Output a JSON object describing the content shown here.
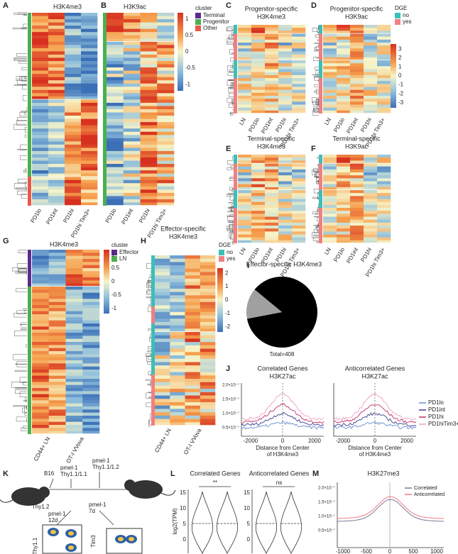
{
  "A": {
    "letter": "A",
    "title": "H3K4me3",
    "columns": [
      "PD1lo",
      "PD1int",
      "PD1hi",
      "PD1hi Tim3+"
    ]
  },
  "B": {
    "letter": "B",
    "title": "H3K9ac",
    "columns": [
      "PD1lo",
      "PD1int",
      "PD1hi",
      "PD1hi Tim3+"
    ]
  },
  "cluster_legend": {
    "title": "cluster",
    "items": [
      "Terminal",
      "Progenitor",
      "Other"
    ],
    "colors": [
      "#5b2c8f",
      "#4caf50",
      "#e8584a"
    ],
    "ticks": [
      1,
      0.5,
      0,
      -0.5,
      -1
    ]
  },
  "C": {
    "letter": "C",
    "title": [
      "Progenitor-specific",
      "H3K4me3"
    ],
    "columns": [
      "LN",
      "PD1lo",
      "PD1int",
      "PD1hi",
      "PD1hi Tim3+"
    ]
  },
  "D": {
    "letter": "D",
    "title": [
      "Progenitor-specific",
      "H3K9ac"
    ],
    "columns": [
      "LN",
      "PD1lo",
      "PD1int",
      "PD1hi",
      "PD1hi Tim3+"
    ]
  },
  "E": {
    "letter": "E",
    "title": [
      "Terminal-specific",
      "H3K4me3"
    ],
    "columns": [
      "LN",
      "PD1lo",
      "PD1int",
      "PD1hi",
      "PD1hi Tim3+"
    ]
  },
  "F": {
    "letter": "F",
    "title": [
      "Terminal-specific",
      "H3K9ac"
    ],
    "columns": [
      "LN",
      "PD1lo",
      "PD1int",
      "PD1hi",
      "PD1hi Tim3+"
    ]
  },
  "dge_legend": {
    "title": "DGE",
    "items": [
      "no",
      "yes"
    ],
    "colors": [
      "#3dbfb8",
      "#f08080"
    ],
    "ticks": [
      3,
      2,
      1,
      0,
      -1,
      -2,
      -3
    ]
  },
  "G": {
    "letter": "G",
    "title": "H3K4me3",
    "columns": [
      "CD44+ LN",
      "OT-I VVova"
    ],
    "legend_title": "cluster",
    "legend_items": [
      "Effector",
      "LN"
    ],
    "legend_colors": [
      "#5b2c8f",
      "#4caf50"
    ],
    "ticks": [
      1,
      0.5,
      0,
      -0.5,
      -1
    ]
  },
  "H": {
    "letter": "H",
    "title": [
      "Effector-specific",
      "H3K4me3"
    ],
    "columns": [
      "CD44+ LN",
      "OT-I VVova"
    ],
    "legend_title": "DGE",
    "legend_items": [
      "no",
      "yes"
    ],
    "ticks": [
      2,
      1,
      0,
      -1,
      -2
    ]
  },
  "I": {
    "letter": "I",
    "title": "Effector-specific H3K4me3",
    "total": "Total=408",
    "values": [
      86,
      14
    ],
    "colors": [
      "#000000",
      "#a0a0a0"
    ]
  },
  "J": {
    "letter": "J",
    "plots": [
      {
        "title": [
          "Correlated Genes",
          "H3K27ac"
        ]
      },
      {
        "title": [
          "Anticorrelated Genes",
          "H3K27ac"
        ]
      }
    ],
    "yticks": [
      "2.0×10⁻⁷",
      "1.5×10⁻⁷",
      "1.0×10⁻⁷",
      "0.5×10⁻⁷"
    ],
    "xticks": [
      -2000,
      0,
      2000
    ],
    "xlabel": [
      "Distance from Center",
      "of H3K4me3"
    ],
    "legend": [
      "PD1lo",
      "PD1int",
      "PD1hi",
      "PD1hiTim3+"
    ],
    "colors": [
      "#6a8fd0",
      "#3a3f8f",
      "#c0306a",
      "#f0a0c0"
    ]
  },
  "K": {
    "letter": "K",
    "b16": "B16",
    "donor1": [
      "pmel-1",
      "Thy1.1/1.1"
    ],
    "donor2": [
      "pmel-1",
      "Thy1.1/1.2"
    ],
    "host": "Thy1.2",
    "t1": [
      "pmel-1",
      "12d"
    ],
    "t2": [
      "pmel-1",
      "7d"
    ],
    "yaxis": "Thy1.1",
    "xaxis": "Tim3"
  },
  "L": {
    "letter": "L",
    "plots": [
      {
        "title": "Correlated Genes",
        "sig": "**"
      },
      {
        "title": "Anticorrelated Genes",
        "sig": "ns"
      }
    ],
    "ylabel": "log2(TPM)",
    "yticks": [
      15,
      10,
      5,
      0
    ]
  },
  "M": {
    "letter": "M",
    "title": "H3K27me3",
    "yticks": [
      "2.0×10⁻⁷",
      "1.5×10⁻⁷",
      "1.0×10⁻⁷",
      "0.5×10⁻⁷"
    ],
    "xticks": [
      -1000,
      -500,
      0,
      500,
      1000
    ],
    "legend": [
      "Correlated",
      "Anticorrelated"
    ],
    "colors": [
      "#7a7a9a",
      "#f07a8a"
    ]
  }
}
